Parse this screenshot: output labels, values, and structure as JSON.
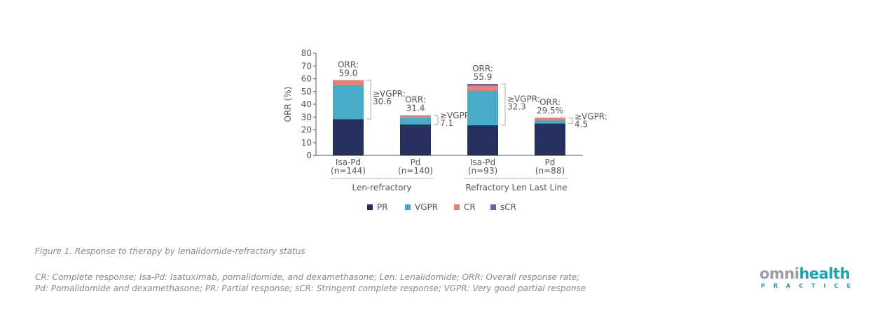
{
  "chart_data": {
    "type": "bar",
    "stacked": true,
    "title": "",
    "xlabel": "",
    "ylabel": "ORR (%)",
    "ylim": [
      0,
      80
    ],
    "yticks": [
      "0",
      "10",
      "20",
      "30",
      "40",
      "50",
      "60",
      "70",
      "80"
    ],
    "categories": [
      "Isa-Pd\n(n=144)",
      "Pd\n(n=140)",
      "Isa-Pd\n(n=93)",
      "Pd\n(n=88)"
    ],
    "category_lines": [
      [
        "Isa-Pd",
        "(n=144)"
      ],
      [
        "Pd",
        "(n=140)"
      ],
      [
        "Isa-Pd",
        "(n=93)"
      ],
      [
        "Pd",
        "(n=88)"
      ]
    ],
    "groups": [
      {
        "label": "Len-refractory",
        "categories": [
          0,
          1
        ]
      },
      {
        "label": "Refractory Len Last Line",
        "categories": [
          2,
          3
        ]
      }
    ],
    "series": [
      {
        "name": "PR",
        "color": "#25305f",
        "values": [
          28.4,
          24.3,
          23.6,
          25.0
        ]
      },
      {
        "name": "VGPR",
        "color": "#48acc8",
        "values": [
          26.4,
          5.4,
          27.1,
          2.9
        ]
      },
      {
        "name": "CR",
        "color": "#e8806f",
        "values": [
          4.2,
          1.4,
          3.8,
          1.6
        ]
      },
      {
        "name": "sCR",
        "color": "#7b5fa0",
        "values": [
          0.0,
          0.3,
          1.4,
          0.0
        ]
      }
    ],
    "annotations": {
      "orr": [
        {
          "line1": "ORR:",
          "line2": "59.0",
          "value": 59.0
        },
        {
          "line1": "ORR:",
          "line2": "31.4",
          "value": 31.4
        },
        {
          "line1": "ORR:",
          "line2": "55.9",
          "value": 55.9
        },
        {
          "line1": "ORR:",
          "line2": "29.5%",
          "value": 29.5
        }
      ],
      "vgpr": [
        {
          "line1": "≥VGPR:",
          "line2": "30.6",
          "value": 30.6
        },
        {
          "line1": "≥VGPR:",
          "line2": "7.1",
          "value": 7.1
        },
        {
          "line1": "≥VGPR:",
          "line2": "32.3",
          "value": 32.3
        },
        {
          "line1": "≥VGPR:",
          "line2": "4.5",
          "value": 4.5
        }
      ]
    },
    "legend": {
      "position": "bottom",
      "entries": [
        "PR",
        "VGPR",
        "CR",
        "sCR"
      ]
    },
    "grid": false
  },
  "figure": {
    "caption": "Figure 1. Response to therapy by lenalidomide-refractory status",
    "abbreviations_line1": "CR: Complete response; Isa-Pd: Isatuximab, pomalidomide, and dexamethasone; Len: Lenalidomide; ORR: Overall response rate;",
    "abbreviations_line2": "Pd: Pomalidomide and dexamethasone; PR: Partial response; sCR: Stringent complete response; VGPR: Very good partial response"
  },
  "brand": {
    "logo_part1": "omni",
    "logo_part2": "health",
    "logo_sub": "PRACTICE",
    "accent_color": "#1aa0b4"
  }
}
